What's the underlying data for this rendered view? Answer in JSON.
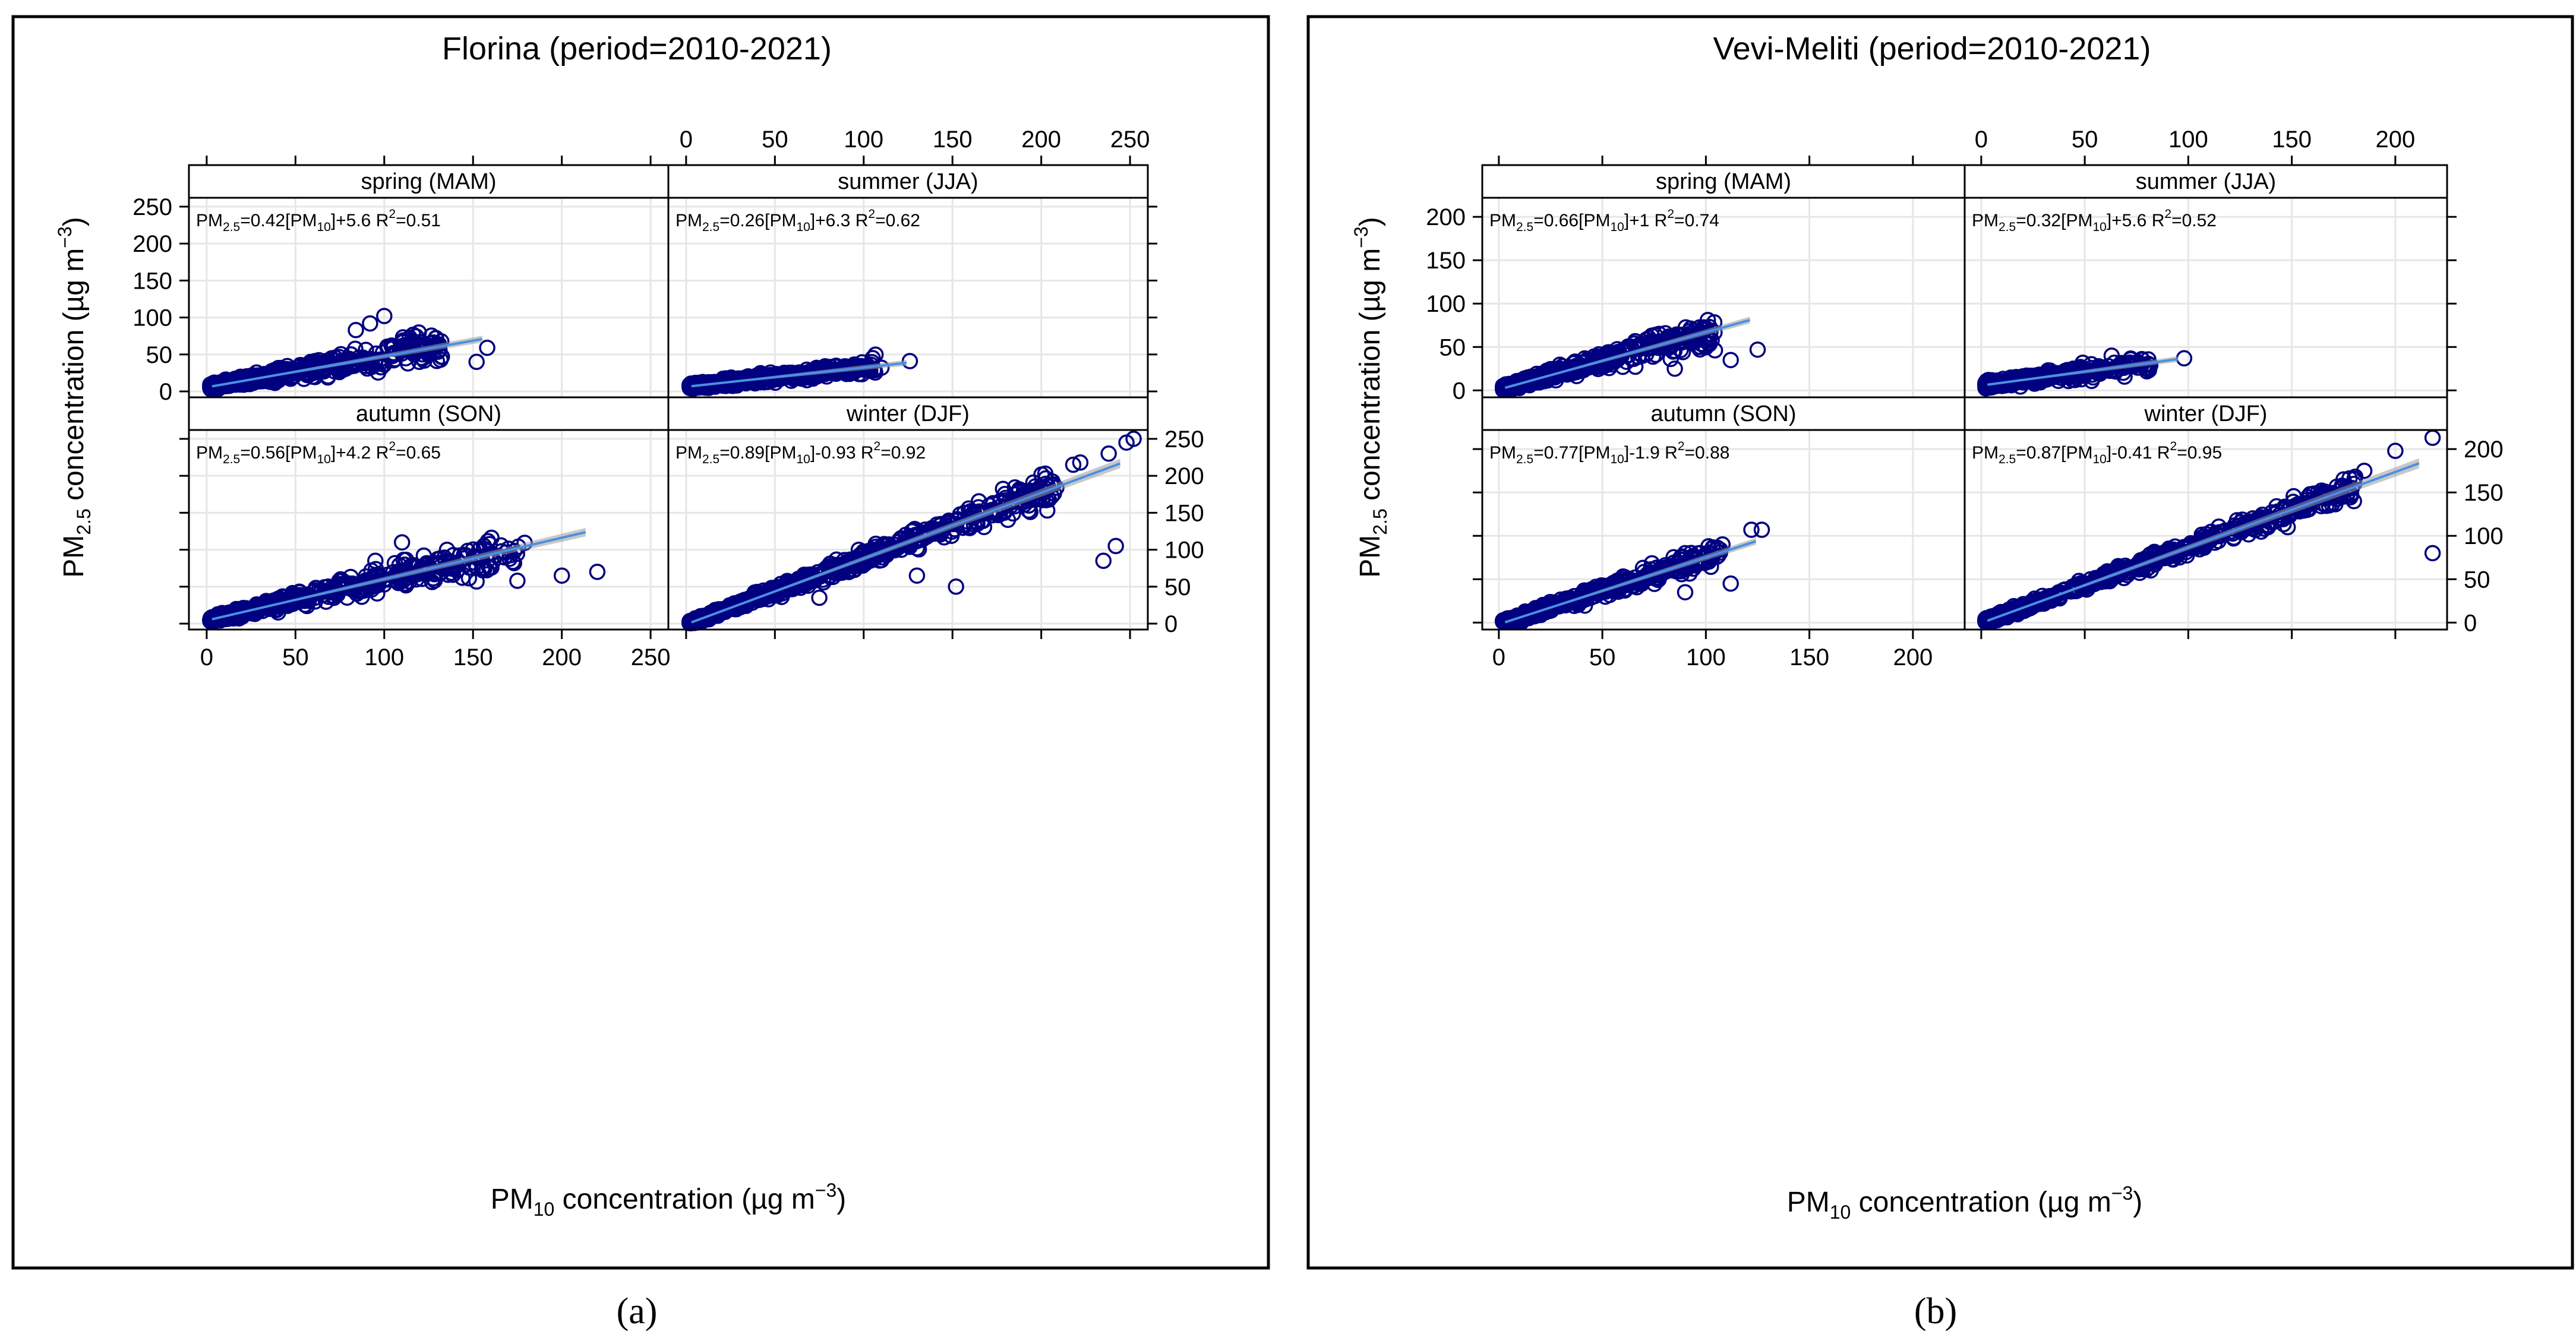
{
  "colors": {
    "points": "#000080",
    "line": "#4a90e2",
    "band": "#9a9a9a",
    "grid": "#e6e6e6",
    "strip_bg": "#ffffff"
  },
  "chart_data": [
    {
      "type": "scatter",
      "title": "Florina (period=2010-2021)",
      "caption": "(a)",
      "xlabel": {
        "main": "PM",
        "sub": "10",
        "rest": " concentration (µg m",
        "sup": "−3",
        "end": ")"
      },
      "ylabel": {
        "main": "PM",
        "sub": "2.5",
        "rest": " concentration (µg m",
        "sup": "−3",
        "end": ")"
      },
      "xlim": [
        -10,
        260
      ],
      "ylim": [
        -8,
        262
      ],
      "xticks": [
        0,
        50,
        100,
        150,
        200,
        250
      ],
      "yticks": [
        0,
        50,
        100,
        150,
        200,
        250
      ],
      "grid": true,
      "panels": [
        {
          "name": "spring (MAM)",
          "slope": 0.42,
          "intercept": 5.6,
          "r2": 0.51,
          "eq": {
            "a": "=0.42[PM",
            "b": "]+5.6 R",
            "c": "=0.51"
          },
          "xmax": 160,
          "spread": 0.12,
          "n": 520,
          "seed": 11,
          "outliers": [
            [
              100,
              102
            ],
            [
              92,
              92
            ],
            [
              84,
              83
            ],
            [
              152,
              40
            ],
            [
              158,
              59
            ],
            [
              70,
              37
            ]
          ]
        },
        {
          "name": "summer (JJA)",
          "slope": 0.26,
          "intercept": 6.3,
          "r2": 0.62,
          "eq": {
            "a": "=0.26[PM",
            "b": "]+6.3 R",
            "c": "=0.62"
          },
          "xmax": 128,
          "spread": 0.06,
          "n": 420,
          "seed": 23,
          "outliers": [
            [
              126,
              41
            ],
            [
              110,
              32
            ],
            [
              95,
              27
            ],
            [
              85,
              25
            ]
          ]
        },
        {
          "name": "autumn (SON)",
          "slope": 0.56,
          "intercept": 4.2,
          "r2": 0.65,
          "eq": {
            "a": "=0.56[PM",
            "b": "]+4.2 R",
            "c": "=0.65"
          },
          "xmax": 220,
          "spread": 0.12,
          "n": 520,
          "seed": 37,
          "outliers": [
            [
              110,
              110
            ],
            [
              200,
              65
            ],
            [
              220,
              70
            ],
            [
              175,
              58
            ],
            [
              152,
              57
            ],
            [
              95,
              85
            ],
            [
              108,
              55
            ]
          ]
        },
        {
          "name": "winter (DJF)",
          "slope": 0.89,
          "intercept": -0.93,
          "r2": 0.92,
          "eq": {
            "a": "=0.89[PM",
            "b": "]-0.93 R",
            "c": "=0.92"
          },
          "xmax": 252,
          "spread": 0.07,
          "n": 700,
          "seed": 51,
          "outliers": [
            [
              252,
              250
            ],
            [
              248,
              245
            ],
            [
              238,
              230
            ],
            [
              222,
              218
            ],
            [
              218,
              215
            ],
            [
              242,
              105
            ],
            [
              235,
              85
            ],
            [
              152,
              50
            ],
            [
              130,
              65
            ],
            [
              75,
              35
            ]
          ]
        }
      ]
    },
    {
      "type": "scatter",
      "title": "Vevi-Meliti (period=2010-2021)",
      "caption": "(b)",
      "xlabel": {
        "main": "PM",
        "sub": "10",
        "rest": " concentration (µg m",
        "sup": "−3",
        "end": ")"
      },
      "ylabel": {
        "main": "PM",
        "sub": "2.5",
        "rest": " concentration (µg m",
        "sup": "−3",
        "end": ")"
      },
      "xlim": [
        -8,
        225
      ],
      "ylim": [
        -8,
        222
      ],
      "xticks": [
        0,
        50,
        100,
        150,
        200
      ],
      "yticks": [
        0,
        50,
        100,
        150,
        200
      ],
      "grid": true,
      "panels": [
        {
          "name": "spring (MAM)",
          "slope": 0.66,
          "intercept": 1,
          "r2": 0.74,
          "eq": {
            "a": "=0.66[PM",
            "b": "]+1 R",
            "c": "=0.74"
          },
          "xmax": 125,
          "spread": 0.12,
          "n": 480,
          "seed": 71,
          "outliers": [
            [
              125,
              47
            ],
            [
              112,
              35
            ],
            [
              85,
              25
            ],
            [
              82,
              62
            ],
            [
              75,
              55
            ]
          ]
        },
        {
          "name": "summer (JJA)",
          "slope": 0.32,
          "intercept": 5.6,
          "r2": 0.52,
          "eq": {
            "a": "=0.32[PM",
            "b": "]+5.6 R",
            "c": "=0.52"
          },
          "xmax": 98,
          "spread": 0.08,
          "n": 380,
          "seed": 83,
          "outliers": [
            [
              98,
              37
            ],
            [
              63,
              40
            ],
            [
              80,
              22
            ],
            [
              75,
              30
            ]
          ]
        },
        {
          "name": "autumn (SON)",
          "slope": 0.77,
          "intercept": -1.9,
          "r2": 0.88,
          "eq": {
            "a": "=0.77[PM",
            "b": "]-1.9 R",
            "c": "=0.88"
          },
          "xmax": 128,
          "spread": 0.08,
          "n": 460,
          "seed": 97,
          "outliers": [
            [
              127,
              107
            ],
            [
              122,
              107
            ],
            [
              108,
              90
            ],
            [
              90,
              80
            ],
            [
              90,
              35
            ],
            [
              112,
              45
            ]
          ]
        },
        {
          "name": "winter (DJF)",
          "slope": 0.87,
          "intercept": -0.41,
          "r2": 0.95,
          "eq": {
            "a": "=0.87[PM",
            "b": "]-0.41 R",
            "c": "=0.95"
          },
          "xmax": 218,
          "spread": 0.05,
          "n": 620,
          "seed": 109,
          "outliers": [
            [
              218,
              213
            ],
            [
              200,
              198
            ],
            [
              185,
              175
            ],
            [
              175,
              165
            ],
            [
              180,
              140
            ],
            [
              218,
              80
            ],
            [
              148,
              110
            ],
            [
              155,
              132
            ],
            [
              138,
              112
            ],
            [
              122,
              98
            ]
          ]
        }
      ]
    }
  ]
}
